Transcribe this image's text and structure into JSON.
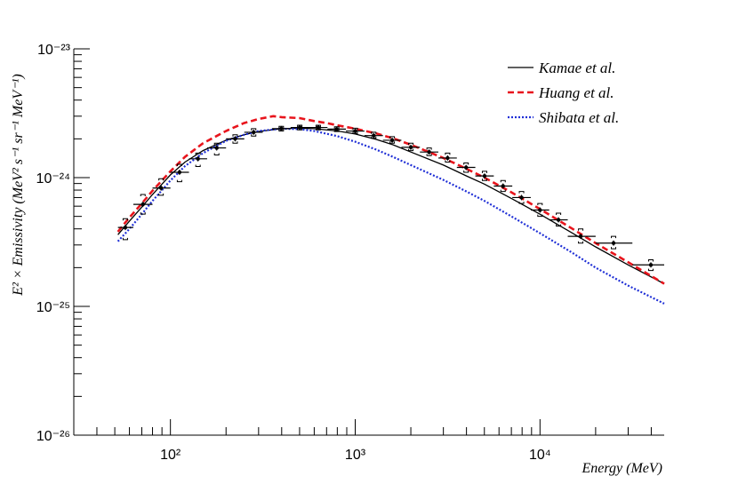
{
  "chart_data": {
    "type": "line",
    "xlabel": "Energy (MeV)",
    "ylabel": "E² × Emissivity (MeV² s⁻¹ sr⁻¹ MeV⁻¹)",
    "x_scale": "log",
    "y_scale": "log",
    "xlim": [
      30,
      47000
    ],
    "ylim": [
      1e-26,
      1e-23
    ],
    "grid": false,
    "legend_position": "top-right",
    "x_ticks": [
      {
        "value": 100,
        "label": "10²"
      },
      {
        "value": 1000,
        "label": "10³"
      },
      {
        "value": 10000,
        "label": "10⁴"
      }
    ],
    "y_ticks": [
      {
        "value": 1e-26,
        "label": "10⁻²⁶"
      },
      {
        "value": 1e-25,
        "label": "10⁻²⁵"
      },
      {
        "value": 1e-24,
        "label": "10⁻²⁴"
      },
      {
        "value": 1e-23,
        "label": "10⁻²³"
      }
    ],
    "series": [
      {
        "name": "Kamae et al.",
        "color": "#000000",
        "dash": "solid",
        "points": [
          [
            52,
            3.6e-25
          ],
          [
            60,
            4.6e-25
          ],
          [
            70,
            5.9e-25
          ],
          [
            80,
            7.4e-25
          ],
          [
            90,
            8.9e-25
          ],
          [
            100,
            1.05e-24
          ],
          [
            120,
            1.32e-24
          ],
          [
            150,
            1.62e-24
          ],
          [
            200,
            1.95e-24
          ],
          [
            250,
            2.15e-24
          ],
          [
            300,
            2.28e-24
          ],
          [
            400,
            2.4e-24
          ],
          [
            500,
            2.42e-24
          ],
          [
            600,
            2.4e-24
          ],
          [
            800,
            2.3e-24
          ],
          [
            1000,
            2.18e-24
          ],
          [
            1300,
            1.98e-24
          ],
          [
            1600,
            1.8e-24
          ],
          [
            2000,
            1.58e-24
          ],
          [
            3000,
            1.25e-24
          ],
          [
            4000,
            1.03e-24
          ],
          [
            5000,
            8.9e-25
          ],
          [
            7000,
            6.9e-25
          ],
          [
            10000,
            5.2e-25
          ],
          [
            15000,
            3.7e-25
          ],
          [
            20000,
            2.9e-25
          ],
          [
            30000,
            2.1e-25
          ],
          [
            47000,
            1.5e-25
          ]
        ]
      },
      {
        "name": "Huang et al.",
        "color": "#e8141c",
        "dash": "dashed",
        "points": [
          [
            52,
            3.8e-25
          ],
          [
            60,
            4.9e-25
          ],
          [
            70,
            6.3e-25
          ],
          [
            80,
            7.9e-25
          ],
          [
            90,
            9.5e-25
          ],
          [
            100,
            1.12e-24
          ],
          [
            120,
            1.45e-24
          ],
          [
            150,
            1.85e-24
          ],
          [
            200,
            2.3e-24
          ],
          [
            250,
            2.65e-24
          ],
          [
            300,
            2.85e-24
          ],
          [
            360,
            3e-24
          ],
          [
            400,
            2.95e-24
          ],
          [
            500,
            2.9e-24
          ],
          [
            600,
            2.75e-24
          ],
          [
            700,
            2.65e-24
          ],
          [
            800,
            2.55e-24
          ],
          [
            1000,
            2.4e-24
          ],
          [
            1300,
            2.2e-24
          ],
          [
            1600,
            2.02e-24
          ],
          [
            2000,
            1.8e-24
          ],
          [
            3000,
            1.42e-24
          ],
          [
            4000,
            1.17e-24
          ],
          [
            5000,
            1e-24
          ],
          [
            7000,
            7.7e-25
          ],
          [
            10000,
            5.7e-25
          ],
          [
            15000,
            4e-25
          ],
          [
            20000,
            3.1e-25
          ],
          [
            30000,
            2.2e-25
          ],
          [
            47000,
            1.5e-25
          ]
        ]
      },
      {
        "name": "Shibata et al.",
        "color": "#1f2fd6",
        "dash": "dotted",
        "points": [
          [
            52,
            3.2e-25
          ],
          [
            60,
            4e-25
          ],
          [
            70,
            5.2e-25
          ],
          [
            80,
            6.6e-25
          ],
          [
            90,
            8e-25
          ],
          [
            100,
            9.5e-25
          ],
          [
            120,
            1.23e-24
          ],
          [
            150,
            1.55e-24
          ],
          [
            200,
            1.93e-24
          ],
          [
            250,
            2.15e-24
          ],
          [
            300,
            2.3e-24
          ],
          [
            400,
            2.4e-24
          ],
          [
            500,
            2.38e-24
          ],
          [
            600,
            2.3e-24
          ],
          [
            800,
            2.1e-24
          ],
          [
            1000,
            1.9e-24
          ],
          [
            1300,
            1.65e-24
          ],
          [
            1600,
            1.45e-24
          ],
          [
            2000,
            1.25e-24
          ],
          [
            3000,
            9.6e-25
          ],
          [
            4000,
            7.8e-25
          ],
          [
            5000,
            6.6e-25
          ],
          [
            7000,
            5e-25
          ],
          [
            10000,
            3.7e-25
          ],
          [
            15000,
            2.6e-25
          ],
          [
            20000,
            2e-25
          ],
          [
            30000,
            1.45e-25
          ],
          [
            47000,
            1.05e-25
          ]
        ]
      }
    ],
    "data_points": [
      {
        "x": 57,
        "y": 4.1e-25,
        "xlo": 52,
        "xhi": 63,
        "sys_lo": 3.3e-25,
        "sys_hi": 4.8e-25
      },
      {
        "x": 71,
        "y": 6.2e-25,
        "xlo": 63,
        "xhi": 80,
        "sys_lo": 5.2e-25,
        "sys_hi": 7.4e-25
      },
      {
        "x": 89,
        "y": 8.3e-25,
        "xlo": 80,
        "xhi": 100,
        "sys_lo": 7.3e-25,
        "sys_hi": 9.8e-25
      },
      {
        "x": 112,
        "y": 1.1e-24,
        "xlo": 100,
        "xhi": 126,
        "sys_lo": 9.3e-25,
        "sys_hi": 1.27e-24
      },
      {
        "x": 141,
        "y": 1.4e-24,
        "xlo": 126,
        "xhi": 158,
        "sys_lo": 1.22e-24,
        "sys_hi": 1.55e-24
      },
      {
        "x": 178,
        "y": 1.7e-24,
        "xlo": 158,
        "xhi": 200,
        "sys_lo": 1.5e-24,
        "sys_hi": 1.85e-24
      },
      {
        "x": 224,
        "y": 2e-24,
        "xlo": 200,
        "xhi": 251,
        "sys_lo": 1.85e-24,
        "sys_hi": 2.15e-24
      },
      {
        "x": 282,
        "y": 2.25e-24,
        "xlo": 251,
        "xhi": 316,
        "sys_lo": 2.1e-24,
        "sys_hi": 2.4e-24
      },
      {
        "x": 398,
        "y": 2.4e-24,
        "xlo": 355,
        "xhi": 447,
        "sys_lo": 2.3e-24,
        "sys_hi": 2.5e-24
      },
      {
        "x": 501,
        "y": 2.45e-24,
        "xlo": 447,
        "xhi": 562,
        "sys_lo": 2.35e-24,
        "sys_hi": 2.55e-24
      },
      {
        "x": 631,
        "y": 2.45e-24,
        "xlo": 562,
        "xhi": 708,
        "sys_lo": 2.35e-24,
        "sys_hi": 2.55e-24
      },
      {
        "x": 794,
        "y": 2.38e-24,
        "xlo": 708,
        "xhi": 891,
        "sys_lo": 2.28e-24,
        "sys_hi": 2.48e-24
      },
      {
        "x": 1000,
        "y": 2.3e-24,
        "xlo": 891,
        "xhi": 1122,
        "sys_lo": 2.2e-24,
        "sys_hi": 2.42e-24
      },
      {
        "x": 1259,
        "y": 2.12e-24,
        "xlo": 1122,
        "xhi": 1413,
        "sys_lo": 2.02e-24,
        "sys_hi": 2.25e-24
      },
      {
        "x": 1585,
        "y": 1.95e-24,
        "xlo": 1413,
        "xhi": 1778,
        "sys_lo": 1.85e-24,
        "sys_hi": 2.08e-24
      },
      {
        "x": 2000,
        "y": 1.72e-24,
        "xlo": 1778,
        "xhi": 2239,
        "sys_lo": 1.62e-24,
        "sys_hi": 1.85e-24
      },
      {
        "x": 2512,
        "y": 1.58e-24,
        "xlo": 2239,
        "xhi": 2818,
        "sys_lo": 1.48e-24,
        "sys_hi": 1.7e-24
      },
      {
        "x": 3162,
        "y": 1.42e-24,
        "xlo": 2818,
        "xhi": 3548,
        "sys_lo": 1.32e-24,
        "sys_hi": 1.55e-24
      },
      {
        "x": 3981,
        "y": 1.2e-24,
        "xlo": 3548,
        "xhi": 4467,
        "sys_lo": 1.1e-24,
        "sys_hi": 1.3e-24
      },
      {
        "x": 5012,
        "y": 1.03e-24,
        "xlo": 4467,
        "xhi": 5623,
        "sys_lo": 9.5e-25,
        "sys_hi": 1.12e-24
      },
      {
        "x": 6310,
        "y": 8.6e-25,
        "xlo": 5623,
        "xhi": 7079,
        "sys_lo": 7.8e-25,
        "sys_hi": 9.5e-25
      },
      {
        "x": 7943,
        "y": 7e-25,
        "xlo": 7079,
        "xhi": 8913,
        "sys_lo": 6.3e-25,
        "sys_hi": 7.8e-25
      },
      {
        "x": 10000,
        "y": 5.6e-25,
        "xlo": 8913,
        "xhi": 11220,
        "sys_lo": 5e-25,
        "sys_hi": 6.3e-25
      },
      {
        "x": 12590,
        "y": 4.7e-25,
        "xlo": 11220,
        "xhi": 14130,
        "sys_lo": 4.2e-25,
        "sys_hi": 5.3e-25
      },
      {
        "x": 16600,
        "y": 3.5e-25,
        "xlo": 14130,
        "xhi": 20000,
        "sys_lo": 3.1e-25,
        "sys_hi": 4e-25
      },
      {
        "x": 25000,
        "y": 3.1e-25,
        "xlo": 20000,
        "xhi": 31620,
        "sys_lo": 2.8e-25,
        "sys_hi": 3.5e-25
      },
      {
        "x": 39800,
        "y": 2.1e-25,
        "xlo": 31620,
        "xhi": 47000,
        "sys_lo": 1.9e-25,
        "sys_hi": 2.3e-25
      }
    ]
  }
}
